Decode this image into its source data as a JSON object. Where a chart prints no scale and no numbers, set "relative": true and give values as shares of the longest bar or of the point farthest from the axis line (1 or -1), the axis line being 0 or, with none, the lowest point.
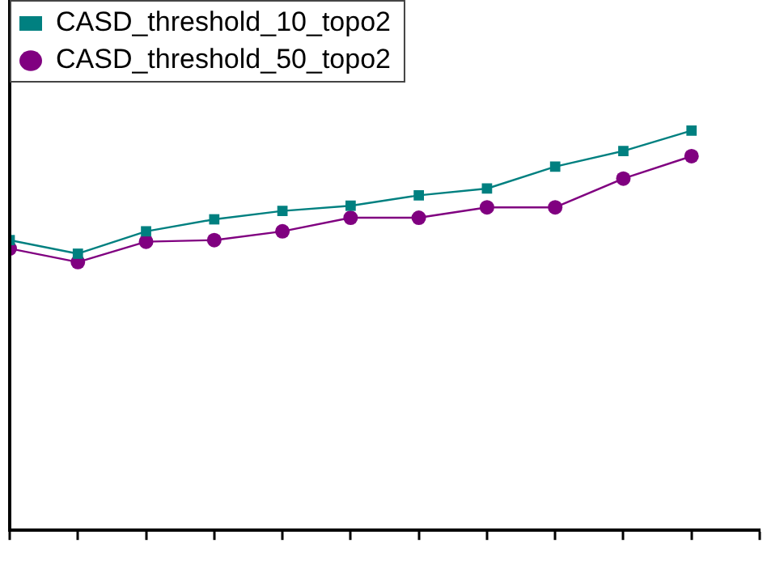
{
  "chart_data": {
    "type": "line",
    "relative": true,
    "categories": [
      null,
      null,
      null,
      null,
      null,
      null,
      null,
      null,
      null,
      null,
      null
    ],
    "series": [
      {
        "name": "CASD_threshold_10_topo2",
        "color": "#008080",
        "marker": "square",
        "values": [
          0.726,
          0.692,
          0.748,
          0.778,
          0.799,
          0.812,
          0.838,
          0.855,
          0.91,
          0.949,
          1
        ]
      },
      {
        "name": "CASD_threshold_50_topo2",
        "color": "#800080",
        "marker": "circle",
        "values": [
          0.705,
          0.671,
          0.722,
          0.726,
          0.748,
          0.782,
          0.782,
          0.808,
          0.808,
          0.88,
          0.936
        ]
      }
    ],
    "legend": "top left",
    "grid": false
  }
}
